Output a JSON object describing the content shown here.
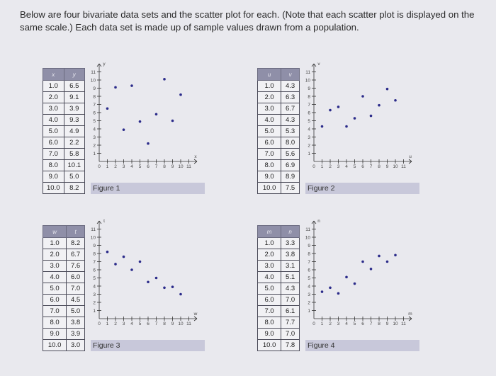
{
  "intro": "Below are four bivariate data sets and the scatter plot for each. (Note that each scatter plot is displayed on the same scale.) Each data set is made up of sample values drawn from a population.",
  "panels": [
    {
      "headers": [
        "x",
        "y"
      ],
      "rows": [
        [
          "1.0",
          "6.5"
        ],
        [
          "2.0",
          "9.1"
        ],
        [
          "3.0",
          "3.9"
        ],
        [
          "4.0",
          "9.3"
        ],
        [
          "5.0",
          "4.9"
        ],
        [
          "6.0",
          "2.2"
        ],
        [
          "7.0",
          "5.8"
        ],
        [
          "8.0",
          "10.1"
        ],
        [
          "9.0",
          "5.0"
        ],
        [
          "10.0",
          "8.2"
        ]
      ],
      "figure": "Figure 1",
      "axis_x": "x",
      "axis_y": "y"
    },
    {
      "headers": [
        "u",
        "v"
      ],
      "rows": [
        [
          "1.0",
          "4.3"
        ],
        [
          "2.0",
          "6.3"
        ],
        [
          "3.0",
          "6.7"
        ],
        [
          "4.0",
          "4.3"
        ],
        [
          "5.0",
          "5.3"
        ],
        [
          "6.0",
          "8.0"
        ],
        [
          "7.0",
          "5.6"
        ],
        [
          "8.0",
          "6.9"
        ],
        [
          "9.0",
          "8.9"
        ],
        [
          "10.0",
          "7.5"
        ]
      ],
      "figure": "Figure 2",
      "axis_x": "u",
      "axis_y": "v"
    },
    {
      "headers": [
        "w",
        "t"
      ],
      "rows": [
        [
          "1.0",
          "8.2"
        ],
        [
          "2.0",
          "6.7"
        ],
        [
          "3.0",
          "7.6"
        ],
        [
          "4.0",
          "6.0"
        ],
        [
          "5.0",
          "7.0"
        ],
        [
          "6.0",
          "4.5"
        ],
        [
          "7.0",
          "5.0"
        ],
        [
          "8.0",
          "3.8"
        ],
        [
          "9.0",
          "3.9"
        ],
        [
          "10.0",
          "3.0"
        ]
      ],
      "figure": "Figure 3",
      "axis_x": "w",
      "axis_y": "t"
    },
    {
      "headers": [
        "m",
        "n"
      ],
      "rows": [
        [
          "1.0",
          "3.3"
        ],
        [
          "2.0",
          "3.8"
        ],
        [
          "3.0",
          "3.1"
        ],
        [
          "4.0",
          "5.1"
        ],
        [
          "5.0",
          "4.3"
        ],
        [
          "6.0",
          "7.0"
        ],
        [
          "7.0",
          "6.1"
        ],
        [
          "8.0",
          "7.7"
        ],
        [
          "9.0",
          "7.0"
        ],
        [
          "10.0",
          "7.8"
        ]
      ],
      "figure": "Figure 4",
      "axis_x": "m",
      "axis_y": "n"
    }
  ],
  "chart_data": [
    {
      "type": "scatter",
      "x": [
        1,
        2,
        3,
        4,
        5,
        6,
        7,
        8,
        9,
        10
      ],
      "y": [
        6.5,
        9.1,
        3.9,
        9.3,
        4.9,
        2.2,
        5.8,
        10.1,
        5.0,
        8.2
      ],
      "xlim": [
        0,
        11
      ],
      "ylim": [
        0,
        11
      ],
      "xlabel": "x",
      "ylabel": "y",
      "title": "Figure 1"
    },
    {
      "type": "scatter",
      "x": [
        1,
        2,
        3,
        4,
        5,
        6,
        7,
        8,
        9,
        10
      ],
      "y": [
        4.3,
        6.3,
        6.7,
        4.3,
        5.3,
        8.0,
        5.6,
        6.9,
        8.9,
        7.5
      ],
      "xlim": [
        0,
        11
      ],
      "ylim": [
        0,
        11
      ],
      "xlabel": "u",
      "ylabel": "v",
      "title": "Figure 2"
    },
    {
      "type": "scatter",
      "x": [
        1,
        2,
        3,
        4,
        5,
        6,
        7,
        8,
        9,
        10
      ],
      "y": [
        8.2,
        6.7,
        7.6,
        6.0,
        7.0,
        4.5,
        5.0,
        3.8,
        3.9,
        3.0
      ],
      "xlim": [
        0,
        11
      ],
      "ylim": [
        0,
        11
      ],
      "xlabel": "w",
      "ylabel": "t",
      "title": "Figure 3"
    },
    {
      "type": "scatter",
      "x": [
        1,
        2,
        3,
        4,
        5,
        6,
        7,
        8,
        9,
        10
      ],
      "y": [
        3.3,
        3.8,
        3.1,
        5.1,
        4.3,
        7.0,
        6.1,
        7.7,
        7.0,
        7.8
      ],
      "xlim": [
        0,
        11
      ],
      "ylim": [
        0,
        11
      ],
      "xlabel": "m",
      "ylabel": "n",
      "title": "Figure 4"
    }
  ],
  "ticks": [
    "0",
    "1",
    "2",
    "3",
    "4",
    "5",
    "6",
    "7",
    "8",
    "9",
    "10",
    "11"
  ],
  "colors": {
    "point": "#2b2b8a",
    "axis": "#333333",
    "table_header": "#8f8fa8"
  }
}
